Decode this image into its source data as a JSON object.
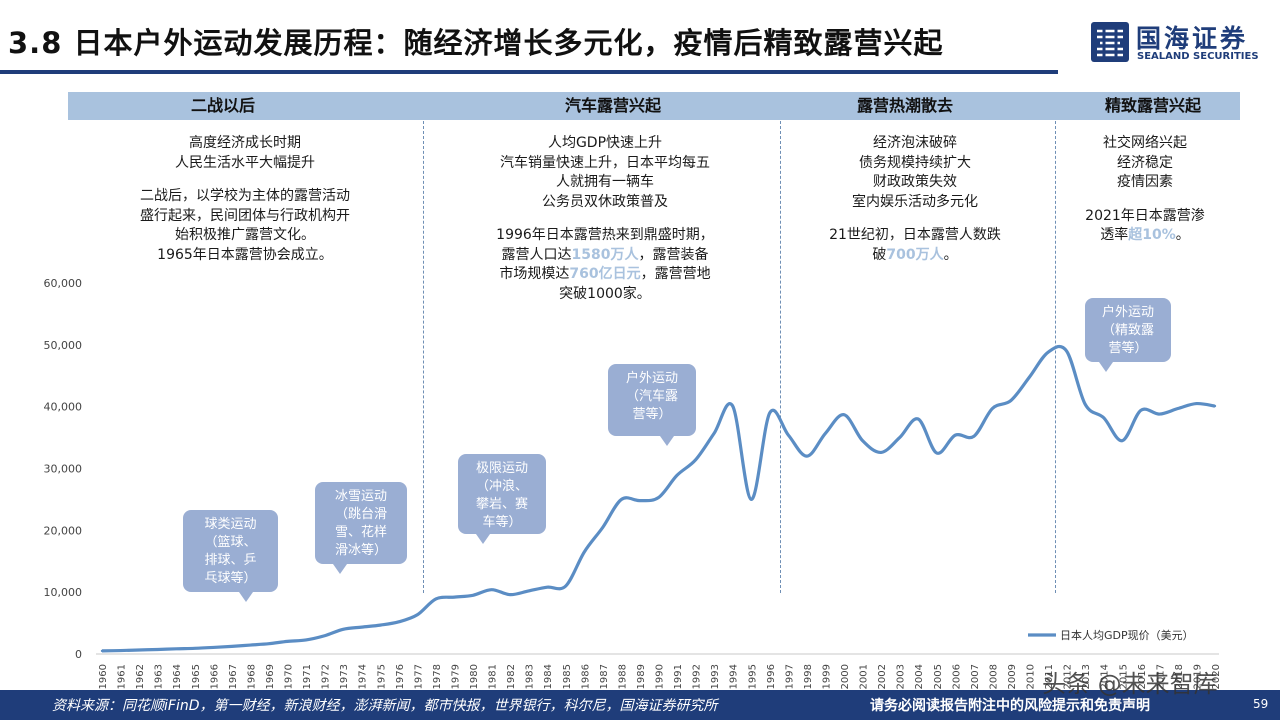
{
  "title": "3.8 日本户外运动发展历程：随经济增长多元化，疫情后精致露营兴起",
  "logo": {
    "cn": "国海证券",
    "en": "SEALAND SECURITIES"
  },
  "phases": [
    {
      "label": "二战以后",
      "desc": [
        "高度经济成长时期",
        "人民生活水平大幅提升",
        "",
        "二战后，以学校为主体的露营活动",
        "盛行起来，民间团体与行政机构开",
        "始积极推广露营文化。",
        "1965年日本露营协会成立。"
      ]
    },
    {
      "label": "汽车露营兴起",
      "desc": [
        "人均GDP快速上升",
        "汽车销量快速上升，日本平均每五",
        "人就拥有一辆车",
        "公务员双休政策普及",
        "",
        "1996年日本露营热来到鼎盛时期，"
      ],
      "desc_hl1": {
        "pre": "露营人口达",
        "hl": "1580万人",
        "post": "，露营装备"
      },
      "desc_hl2": {
        "pre": "市场规模达",
        "hl": "760亿日元",
        "post": "，露营营地"
      },
      "desc_tail": "突破1000家。"
    },
    {
      "label": "露营热潮散去",
      "desc": [
        "经济泡沫破碎",
        "债务规模持续扩大",
        "财政政策失效",
        "室内娱乐活动多元化",
        "",
        "21世纪初，日本露营人数跌"
      ],
      "desc_hl": {
        "pre": "破",
        "hl": "700万人",
        "post": "。"
      }
    },
    {
      "label": "精致露营兴起",
      "desc": [
        "社交网络兴起",
        "经济稳定",
        "疫情因素",
        "",
        "2021年日本露营渗"
      ],
      "desc_hl": {
        "pre": "透率",
        "hl": "超10%",
        "post": "。"
      }
    }
  ],
  "callouts": [
    {
      "lines": [
        "球类运动",
        "（篮球、",
        "排球、乒",
        "乓球等）"
      ]
    },
    {
      "lines": [
        "冰雪运动",
        "（跳台滑",
        "雪、花样",
        "滑冰等）"
      ]
    },
    {
      "lines": [
        "极限运动",
        "（冲浪、",
        "攀岩、赛",
        "车等）"
      ]
    },
    {
      "lines": [
        "户外运动",
        "（汽车露",
        "营等）"
      ]
    },
    {
      "lines": [
        "户外运动",
        "（精致露",
        "营等）"
      ]
    }
  ],
  "chart_data": {
    "type": "line",
    "title": "",
    "xlabel": "",
    "ylabel": "",
    "ylim": [
      0,
      60000
    ],
    "yticks": [
      0,
      10000,
      20000,
      30000,
      40000,
      50000,
      60000
    ],
    "ytick_labels": [
      "0",
      "10,000",
      "20,000",
      "30,000",
      "40,000",
      "50,000",
      "60,000"
    ],
    "grid": false,
    "legend_position": "bottom-right",
    "series": [
      {
        "name": "日本人均GDP现价（美元）",
        "color": "#5b8dc4",
        "x": [
          "1960",
          "1961",
          "1962",
          "1963",
          "1964",
          "1965",
          "1966",
          "1967",
          "1968",
          "1969",
          "1970",
          "1971",
          "1972",
          "1973",
          "1974",
          "1975",
          "1976",
          "1977",
          "1978",
          "1979",
          "1980",
          "1981",
          "1982",
          "1983",
          "1984",
          "1985",
          "1986",
          "1987",
          "1988",
          "1989",
          "1990",
          "1991",
          "1992",
          "1993",
          "1994",
          "1995",
          "1996",
          "1997",
          "1998",
          "1999",
          "2000",
          "2001",
          "2002",
          "2003",
          "2004",
          "2005",
          "2006",
          "2007",
          "2008",
          "2009",
          "2010",
          "2011",
          "2012",
          "2013",
          "2014",
          "2015",
          "2016",
          "2017",
          "2018",
          "2019",
          "2020"
        ],
        "values": [
          500,
          560,
          650,
          730,
          840,
          920,
          1060,
          1230,
          1450,
          1670,
          2040,
          2270,
          2950,
          3990,
          4350,
          4670,
          5200,
          6340,
          8900,
          9200,
          9500,
          10400,
          9600,
          10200,
          10800,
          11000,
          16500,
          20500,
          25000,
          24800,
          25300,
          28900,
          31400,
          35700,
          40100,
          25000,
          39000,
          35400,
          32000,
          35700,
          38700,
          34500,
          32600,
          35000,
          38000,
          32500,
          35400,
          35200,
          39700,
          41000,
          44800,
          48800,
          49000,
          40400,
          38200,
          34500,
          39400,
          38800,
          39700,
          40500,
          40100
        ]
      }
    ]
  },
  "source": "资料来源：同花顺iFinD，第一财经，新浪财经，澎湃新闻，都市快报，世界银行，科尔尼，国海证券研究所",
  "disclaimer": "请务必阅读报告附注中的风险提示和免责声明",
  "page_number": "59",
  "watermark": "头条 @未来智库",
  "colors": {
    "brand": "#1f3d7a",
    "phase_bar": "#a9c2de",
    "callout": "#9aaed3",
    "line": "#5b8dc4"
  }
}
